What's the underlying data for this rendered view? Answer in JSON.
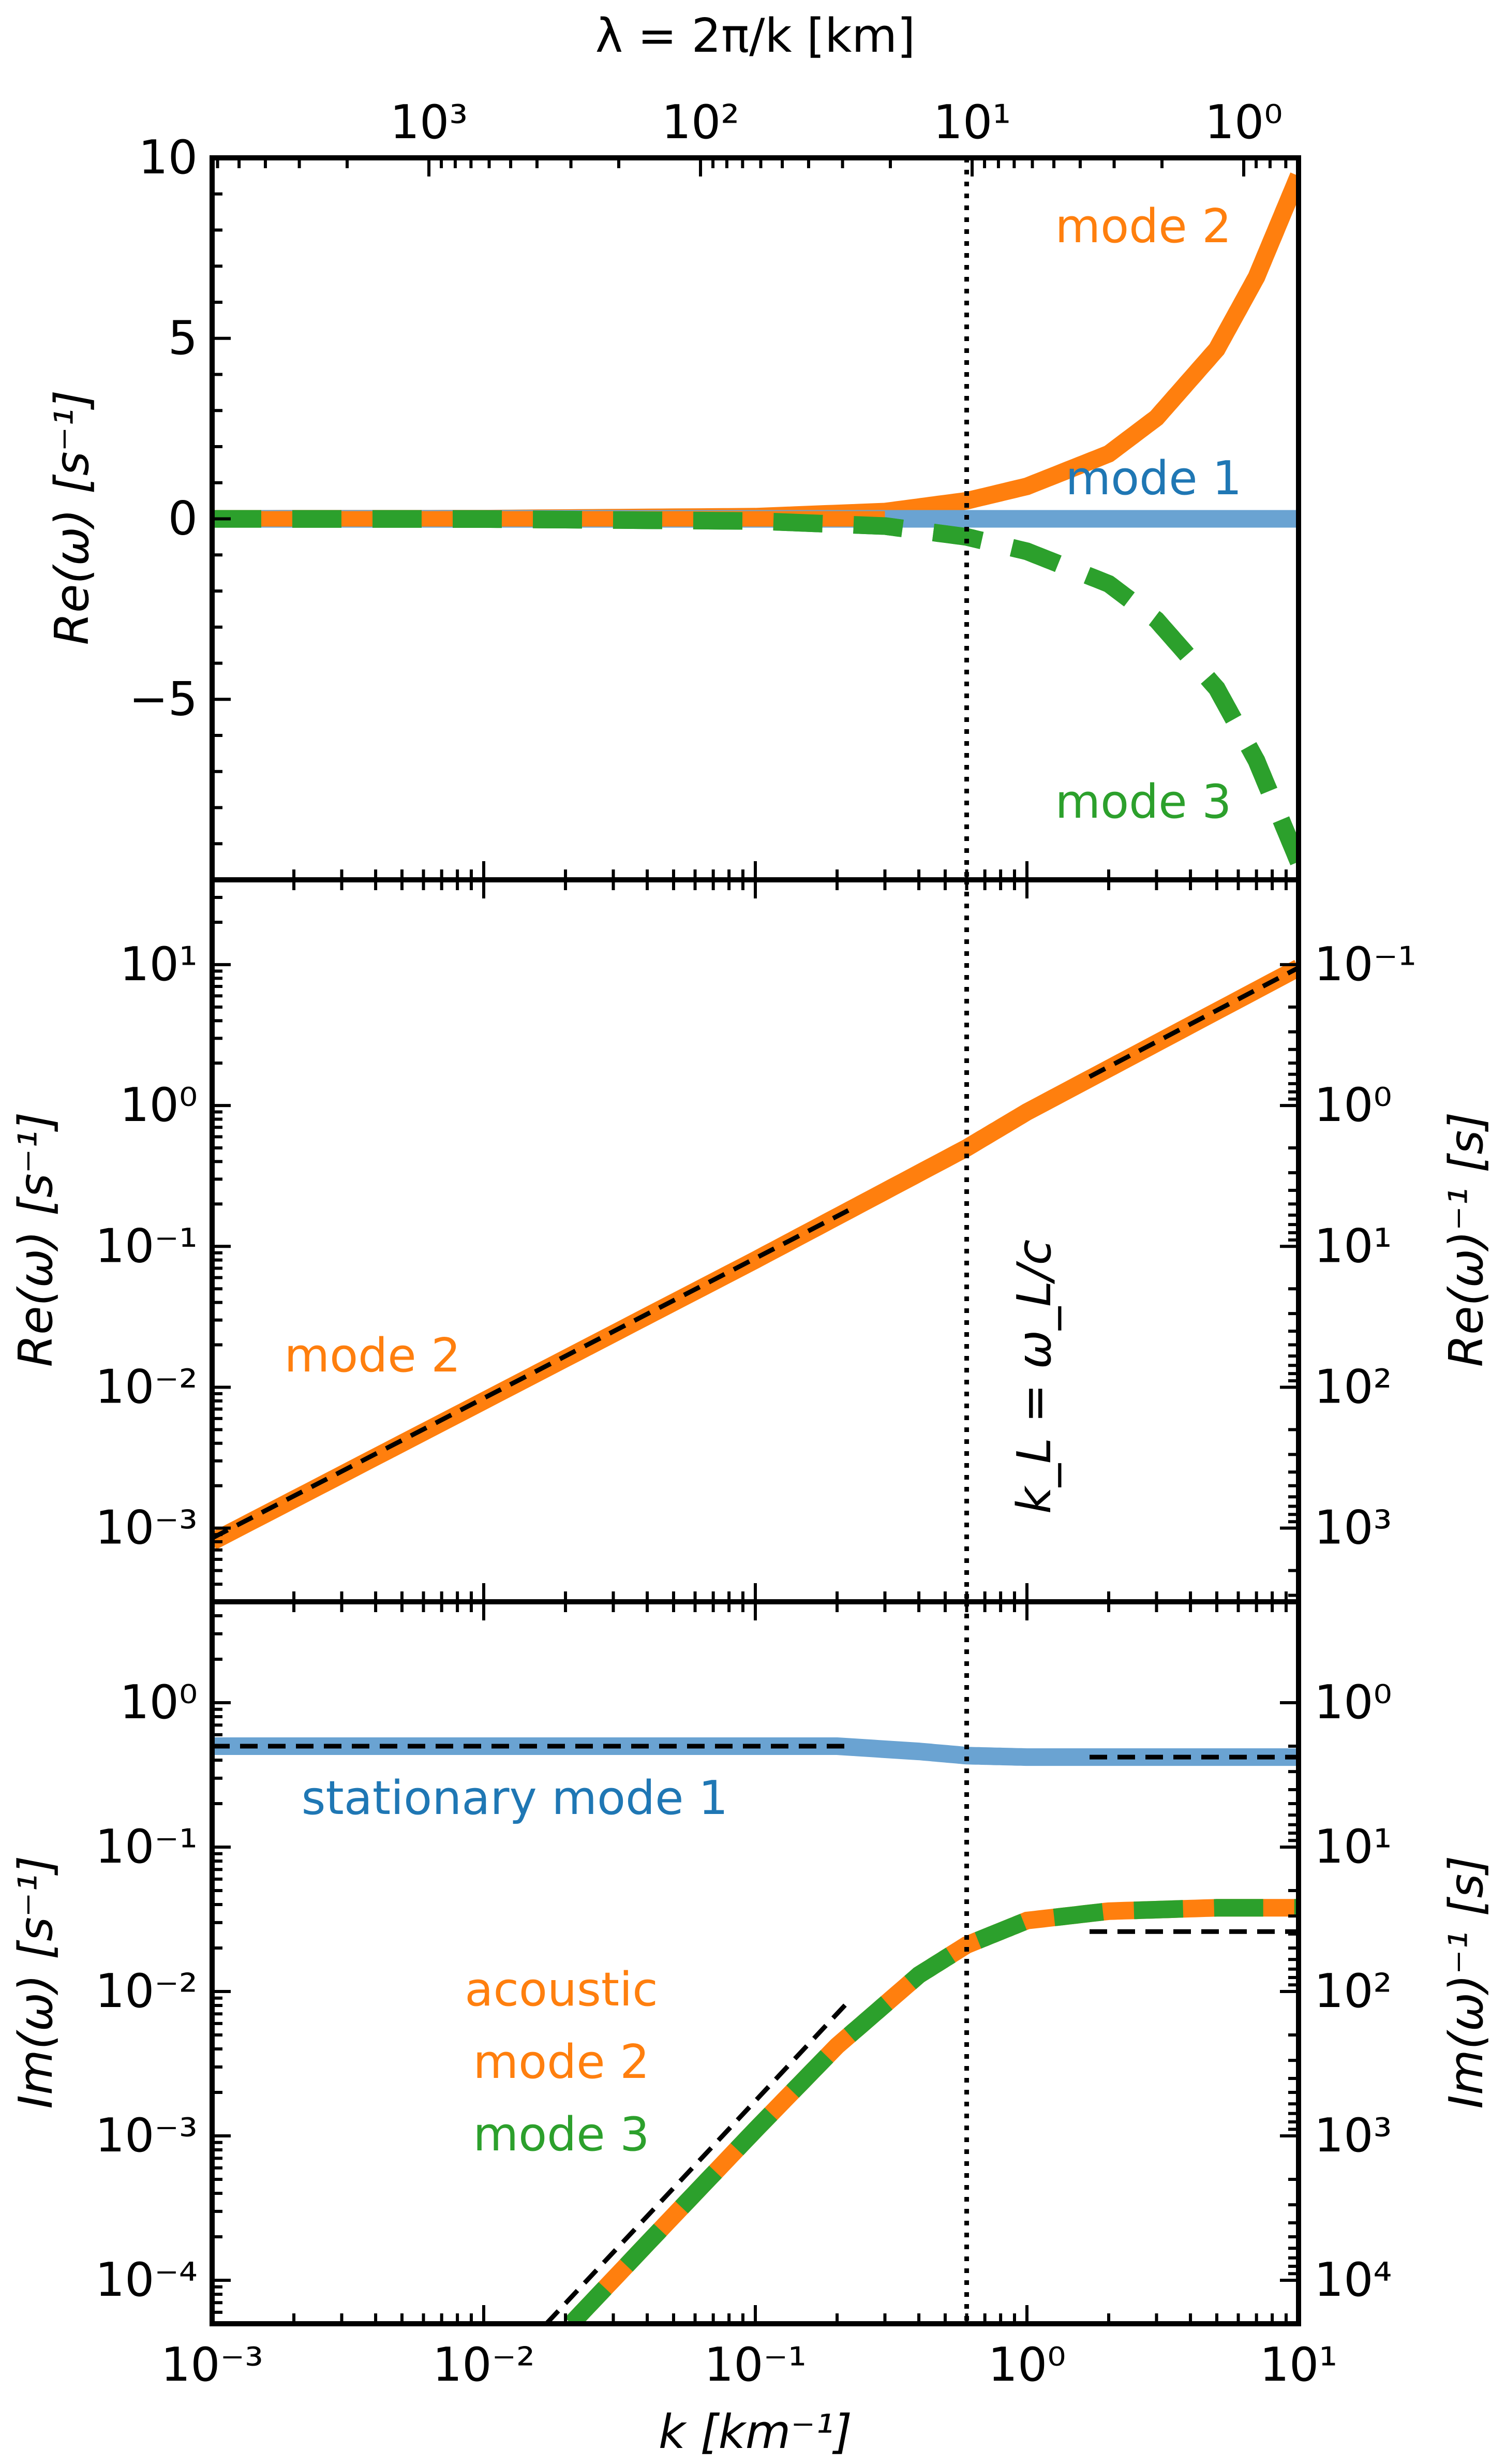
{
  "figure": {
    "top_axis_label": "λ = 2π/k [km]",
    "x_axis_label": "k [km⁻¹]",
    "vline_label": "k_L = ω_L/c"
  },
  "colors": {
    "mode1": "#6aa3d2",
    "mode1_text": "#1f77b4",
    "mode2": "#ff7f0e",
    "mode3": "#2ca02c",
    "asymptote": "#000000"
  },
  "chart_data": [
    {
      "type": "line",
      "panel": "top",
      "ylabel": "Re(ω) [s⁻¹]",
      "x_scale": "log",
      "xlim": [
        0.001,
        10
      ],
      "ylim": [
        -10,
        10
      ],
      "y_ticks": [
        -5,
        0,
        5,
        10
      ],
      "y_tick_labels": [
        "−5",
        "0",
        "5",
        "10"
      ],
      "top_axis": {
        "label": "λ = 2π/k [km]",
        "ticks": [
          1000,
          100,
          10,
          1
        ],
        "tick_labels": [
          "10³",
          "10²",
          "10¹",
          "10⁰"
        ]
      },
      "vline_x": 0.6,
      "x": [
        0.001,
        0.01,
        0.1,
        0.3,
        0.6,
        1,
        2,
        3,
        5,
        7,
        10
      ],
      "series": [
        {
          "name": "mode 2",
          "color": "#ff7f0e",
          "style": "solid",
          "values": [
            0.001,
            0.006,
            0.06,
            0.2,
            0.5,
            0.9,
            1.8,
            2.8,
            4.7,
            6.7,
            9.5
          ]
        },
        {
          "name": "mode 1",
          "color": "#6aa3d2",
          "style": "solid",
          "values": [
            0,
            0,
            0,
            0,
            0,
            0,
            0,
            0,
            0,
            0,
            0
          ]
        },
        {
          "name": "mode 3",
          "color": "#2ca02c",
          "style": "dashed",
          "values": [
            -0.001,
            -0.006,
            -0.06,
            -0.2,
            -0.5,
            -0.9,
            -1.8,
            -2.8,
            -4.7,
            -6.7,
            -9.5
          ]
        }
      ],
      "annotations": [
        {
          "text": "mode 2",
          "color": "#ff7f0e",
          "x": 2.2,
          "y": 8
        },
        {
          "text": "mode 1",
          "color": "#1f77b4",
          "x": 2.2,
          "y": 1
        },
        {
          "text": "mode 3",
          "color": "#2ca02c",
          "x": 2.2,
          "y": -7.8
        }
      ]
    },
    {
      "type": "line",
      "panel": "middle",
      "ylabel": "Re(ω) [s⁻¹]",
      "right_ylabel": "Re(ω)⁻¹ [s]",
      "x_scale": "log",
      "y_scale": "log",
      "xlim": [
        0.001,
        10
      ],
      "ylim": [
        0.0003,
        40
      ],
      "y_ticks": [
        0.001,
        0.01,
        0.1,
        1,
        10
      ],
      "y_tick_labels": [
        "10⁻³",
        "10⁻²",
        "10⁻¹",
        "10⁰",
        "10¹"
      ],
      "right_ticks": [
        1000,
        100,
        10,
        1,
        0.1
      ],
      "right_tick_labels": [
        "10³",
        "10²",
        "10¹",
        "10⁰",
        "10⁻¹"
      ],
      "vline_x": 0.6,
      "series": [
        {
          "name": "mode 2",
          "color": "#ff7f0e",
          "style": "solid",
          "x": [
            0.001,
            0.01,
            0.1,
            0.6,
            1,
            10
          ],
          "values": [
            0.0008,
            0.008,
            0.08,
            0.5,
            0.9,
            9.5
          ]
        }
      ],
      "asymptotes": [
        {
          "x": [
            0.001,
            0.22
          ],
          "values": [
            0.00085,
            0.18
          ]
        },
        {
          "x": [
            1.7,
            10
          ],
          "values": [
            1.6,
            9.5
          ]
        }
      ],
      "annotations": [
        {
          "text": "mode 2",
          "color": "#ff7f0e",
          "x": 0.0022,
          "y": 0.015
        },
        {
          "text": "k_L = ω_L/c",
          "color": "#000000",
          "x": 0.75,
          "y": 0.012
        }
      ]
    },
    {
      "type": "line",
      "panel": "bottom",
      "ylabel": "Im(ω) [s⁻¹]",
      "right_ylabel": "Im(ω)⁻¹ [s]",
      "xlabel": "k [km⁻¹]",
      "x_scale": "log",
      "y_scale": "log",
      "xlim": [
        0.001,
        10
      ],
      "ylim": [
        5e-05,
        5
      ],
      "x_ticks": [
        0.001,
        0.01,
        0.1,
        1,
        10
      ],
      "x_tick_labels": [
        "10⁻³",
        "10⁻²",
        "10⁻¹",
        "10⁰",
        "10¹"
      ],
      "y_ticks": [
        0.0001,
        0.001,
        0.01,
        0.1,
        1
      ],
      "y_tick_labels": [
        "10⁻⁴",
        "10⁻³",
        "10⁻²",
        "10⁻¹",
        "10⁰"
      ],
      "right_ticks": [
        10000,
        1000,
        100,
        10,
        1
      ],
      "right_tick_labels": [
        "10⁴",
        "10³",
        "10²",
        "10¹",
        "10⁰"
      ],
      "vline_x": 0.6,
      "series": [
        {
          "name": "stationary mode 1",
          "color": "#6aa3d2",
          "style": "solid",
          "x": [
            0.001,
            0.2,
            0.4,
            0.6,
            1,
            10
          ],
          "values": [
            0.5,
            0.5,
            0.46,
            0.43,
            0.42,
            0.42
          ]
        },
        {
          "name": "acoustic mode 2",
          "color": "#ff7f0e",
          "style": "solid",
          "x": [
            0.021,
            0.05,
            0.1,
            0.2,
            0.4,
            0.6,
            1,
            2,
            5,
            10
          ],
          "values": [
            5e-05,
            0.00028,
            0.0011,
            0.0042,
            0.013,
            0.021,
            0.031,
            0.036,
            0.038,
            0.038
          ]
        },
        {
          "name": "mode 3",
          "color": "#2ca02c",
          "style": "dashed",
          "x": [
            0.021,
            0.05,
            0.1,
            0.2,
            0.4,
            0.6,
            1,
            2,
            5,
            10
          ],
          "values": [
            5e-05,
            0.00028,
            0.0011,
            0.0042,
            0.013,
            0.021,
            0.031,
            0.036,
            0.038,
            0.038
          ]
        }
      ],
      "asymptotes": [
        {
          "x": [
            0.001,
            0.22
          ],
          "values": [
            0.5,
            0.5
          ]
        },
        {
          "x": [
            1.7,
            10
          ],
          "values": [
            0.42,
            0.42
          ]
        },
        {
          "x": [
            0.017,
            0.22
          ],
          "values": [
            5e-05,
            0.0085
          ]
        },
        {
          "x": [
            1.7,
            10
          ],
          "values": [
            0.026,
            0.026
          ]
        }
      ],
      "annotations": [
        {
          "text": "stationary mode 1",
          "color": "#1f77b4",
          "x": 0.0022,
          "y": 0.22
        },
        {
          "text": "acoustic",
          "color": "#ff7f0e",
          "x": 0.035,
          "y": 0.007
        },
        {
          "text": "mode 2",
          "color": "#ff7f0e",
          "x": 0.035,
          "y": 0.0025
        },
        {
          "text": "mode 3",
          "color": "#2ca02c",
          "x": 0.035,
          "y": 0.0009
        }
      ]
    }
  ]
}
